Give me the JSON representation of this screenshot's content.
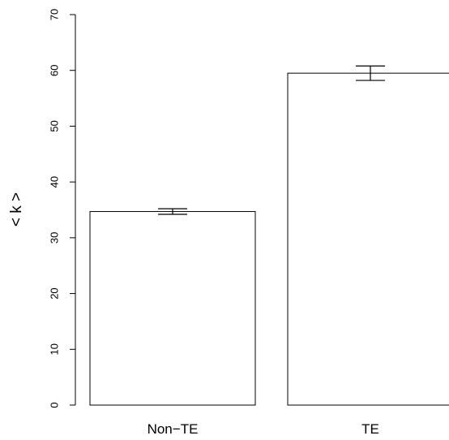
{
  "chart_data": {
    "type": "bar",
    "categories": [
      "Non−TE",
      "TE"
    ],
    "values": [
      34.7,
      59.5
    ],
    "errors": [
      {
        "low": 34.2,
        "high": 35.2
      },
      {
        "low": 58.2,
        "high": 60.8
      }
    ],
    "title": "",
    "xlabel": "",
    "ylabel": "< k >",
    "ylim": [
      0,
      70
    ],
    "yticks": [
      0,
      10,
      20,
      30,
      40,
      50,
      60,
      70
    ],
    "grid": false,
    "colors": {
      "bar_fill": "#ffffff",
      "stroke": "#000000"
    }
  }
}
